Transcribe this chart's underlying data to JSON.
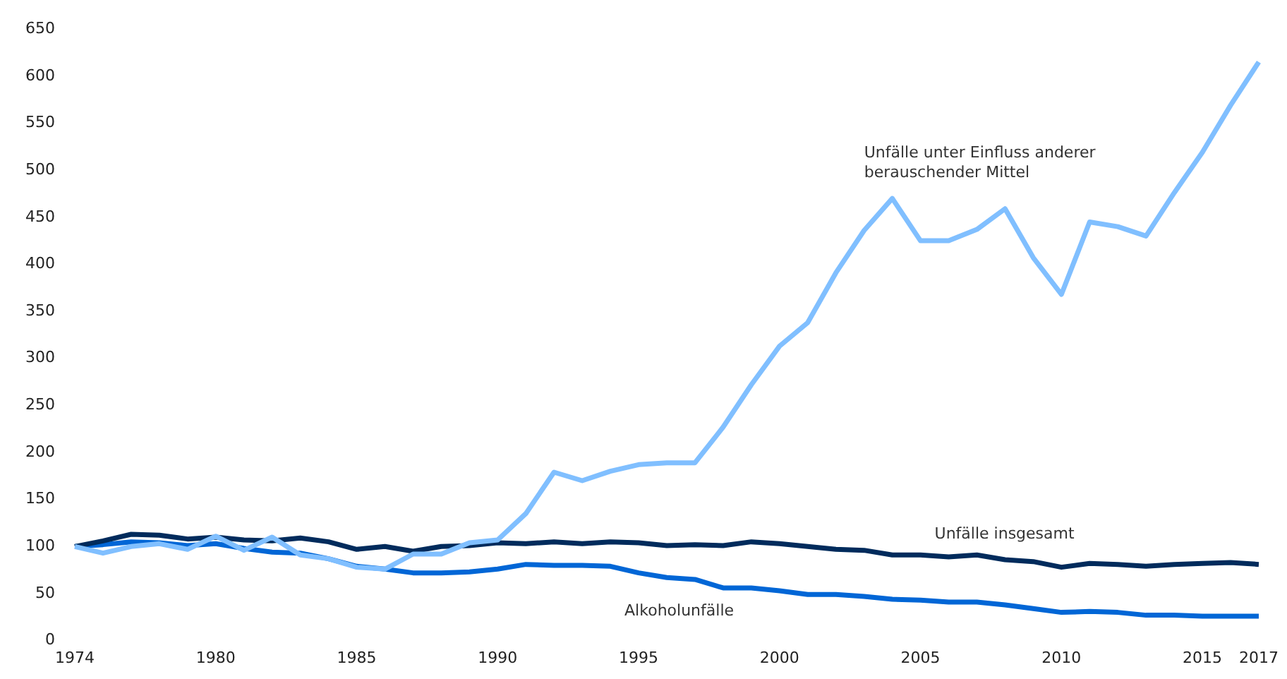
{
  "chart_data": {
    "type": "line",
    "categories": [
      "1974",
      null,
      null,
      null,
      null,
      "1980",
      null,
      null,
      null,
      null,
      "1985",
      null,
      null,
      null,
      null,
      "1990",
      null,
      null,
      null,
      null,
      "1995",
      null,
      null,
      null,
      null,
      "2000",
      null,
      null,
      null,
      null,
      "2005",
      null,
      null,
      null,
      null,
      "2010",
      null,
      null,
      null,
      null,
      "2015",
      null,
      "2017"
    ],
    "series": [
      {
        "name": "Unfälle unter Einfluss anderer berauschender Mittel",
        "color": "#80bfff",
        "values": [
          100,
          93,
          100,
          103,
          97,
          111,
          96,
          110,
          91,
          87,
          78,
          76,
          92,
          92,
          104,
          107,
          135,
          179,
          170,
          180,
          187,
          189,
          189,
          227,
          272,
          313,
          338,
          391,
          436,
          470,
          425,
          425,
          437,
          459,
          407,
          368,
          445,
          440,
          430,
          476,
          519,
          569,
          615
        ]
      },
      {
        "name": "Unfälle insgesamt",
        "color": "#002b5c",
        "values": [
          100,
          106,
          113,
          112,
          108,
          110,
          107,
          106,
          109,
          105,
          97,
          100,
          95,
          100,
          101,
          104,
          103,
          105,
          103,
          105,
          104,
          101,
          102,
          101,
          105,
          103,
          100,
          97,
          96,
          91,
          91,
          89,
          91,
          86,
          84,
          78,
          82,
          81,
          79,
          81,
          82,
          83,
          81
        ]
      },
      {
        "name": "Alkoholunfälle",
        "color": "#0066d6",
        "values": [
          100,
          102,
          105,
          104,
          101,
          103,
          98,
          94,
          93,
          87,
          79,
          76,
          72,
          72,
          73,
          76,
          81,
          80,
          80,
          79,
          72,
          67,
          65,
          56,
          56,
          53,
          49,
          49,
          47,
          44,
          43,
          41,
          41,
          38,
          34,
          30,
          31,
          30,
          27,
          27,
          26,
          26,
          26
        ]
      }
    ],
    "ylim": [
      0,
      650
    ],
    "yticks": [
      0,
      50,
      100,
      150,
      200,
      250,
      300,
      350,
      400,
      450,
      500,
      550,
      600,
      650
    ],
    "grid": false,
    "legend": false,
    "marker": "none",
    "line_style": "solid"
  }
}
